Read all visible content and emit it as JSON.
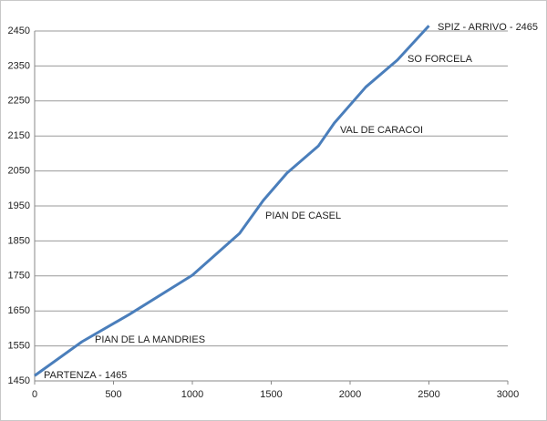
{
  "chart_data": {
    "type": "line",
    "x": [
      0,
      300,
      600,
      1000,
      1300,
      1450,
      1600,
      1800,
      1900,
      2100,
      2300,
      2500
    ],
    "series": [
      {
        "color": "#4a7ebb",
        "values": [
          1465,
          1562,
          1640,
          1752,
          1872,
          1966,
          2044,
          2122,
          2187,
          2290,
          2367,
          2465
        ]
      }
    ],
    "xlim": [
      0,
      3000
    ],
    "xticks": [
      0,
      500,
      1000,
      1500,
      2000,
      2500,
      3000
    ],
    "ylim": [
      1450,
      2450
    ],
    "yticks": [
      1450,
      1550,
      1650,
      1750,
      1850,
      1950,
      2050,
      2150,
      2250,
      2350,
      2450
    ],
    "grid": true,
    "annotations": [
      "PARTENZA - 1465",
      "PIAN DE LA MANDRIES",
      "PIAN DE CASEL",
      "VAL DE CARACOI",
      "SO FORCELA",
      "SPIZ - ARRIVO - 2465"
    ]
  }
}
